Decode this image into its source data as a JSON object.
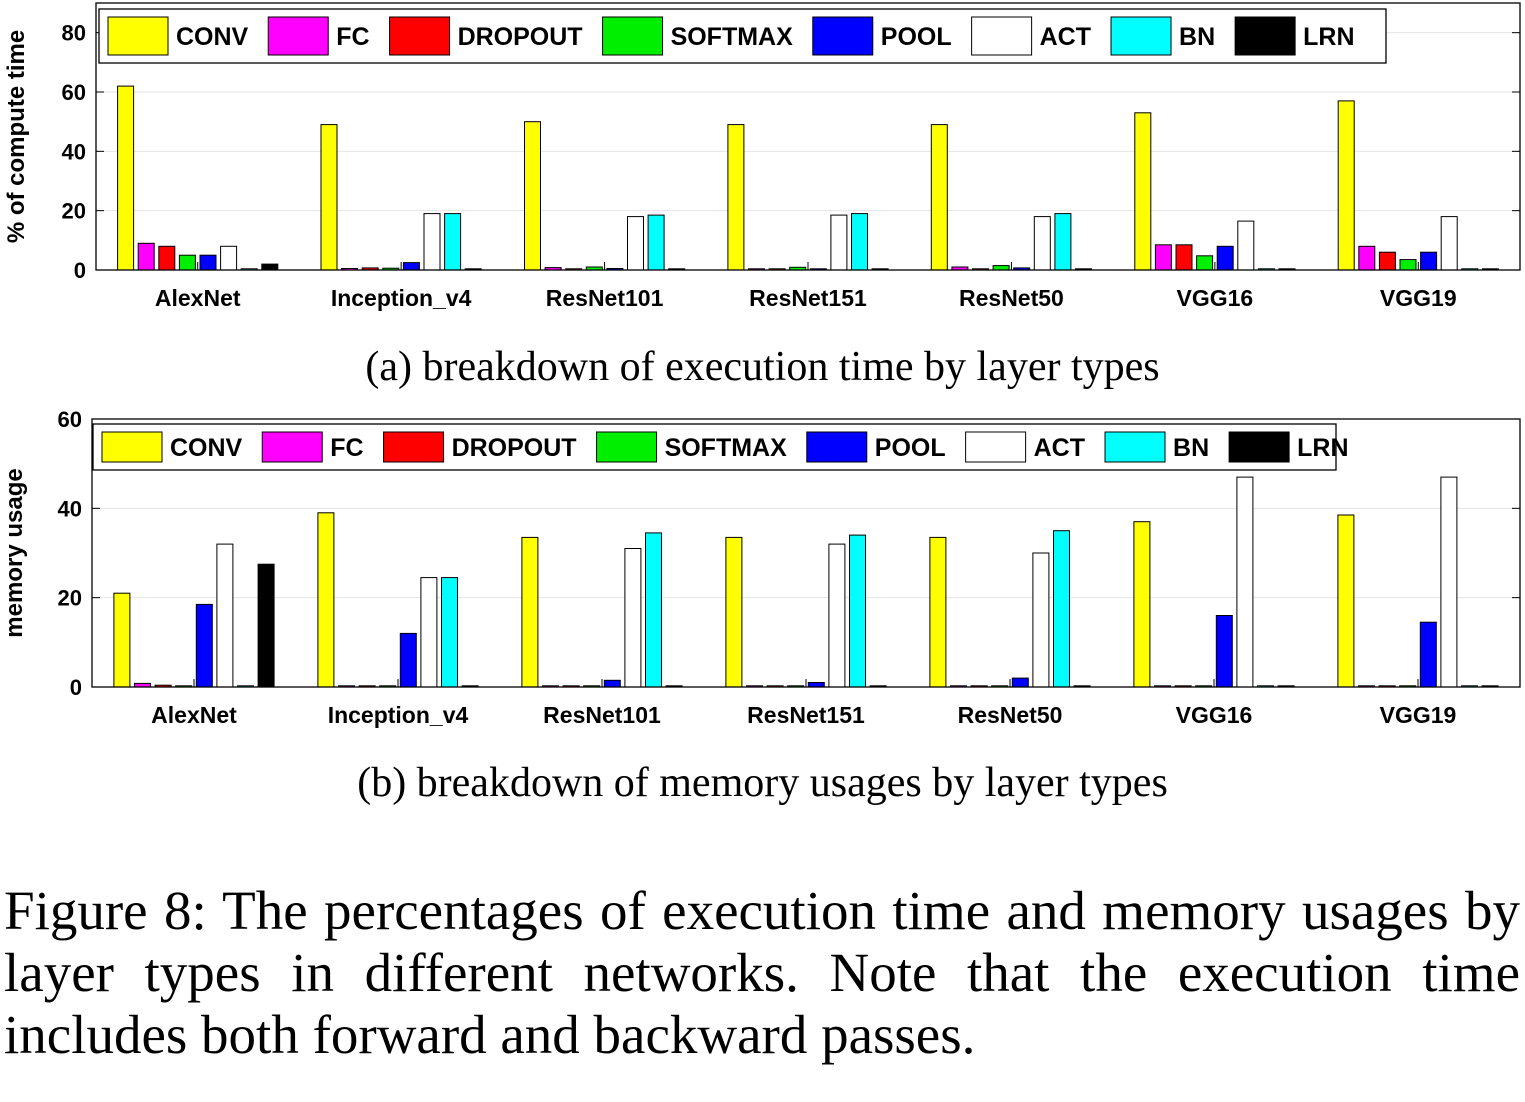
{
  "colors": {
    "CONV": "#ffff00",
    "FC": "#ff00ff",
    "DROPOUT": "#ff0000",
    "SOFTMAX": "#00ee00",
    "POOL": "#0000ff",
    "ACT": "#ffffff",
    "BN": "#00ffff",
    "LRN": "#000000"
  },
  "chart_data": [
    {
      "type": "bar",
      "ylabel": "% of compute time",
      "ylim": [
        0,
        90
      ],
      "yticks": [
        0,
        20,
        40,
        60,
        80
      ],
      "legend": "top-left",
      "categories": [
        "AlexNet",
        "Inception_v4",
        "ResNet101",
        "ResNet151",
        "ResNet50",
        "VGG16",
        "VGG19"
      ],
      "series": [
        {
          "name": "CONV",
          "values": [
            62,
            49,
            50,
            49,
            49,
            53,
            57
          ]
        },
        {
          "name": "FC",
          "values": [
            9,
            0.5,
            0.8,
            0.3,
            1,
            8.5,
            8
          ]
        },
        {
          "name": "DROPOUT",
          "values": [
            8,
            0.7,
            0,
            0,
            0,
            8.5,
            6
          ]
        },
        {
          "name": "SOFTMAX",
          "values": [
            5,
            0.6,
            1,
            0.9,
            1.5,
            4.8,
            3.5
          ]
        },
        {
          "name": "POOL",
          "values": [
            5,
            2.5,
            0.5,
            0.4,
            0.7,
            8,
            6
          ]
        },
        {
          "name": "ACT",
          "values": [
            8,
            19,
            18,
            18.5,
            18,
            16.5,
            18
          ]
        },
        {
          "name": "BN",
          "values": [
            0,
            19,
            18.5,
            19,
            19,
            0,
            0
          ]
        },
        {
          "name": "LRN",
          "values": [
            2,
            0,
            0,
            0,
            0,
            0,
            0
          ]
        }
      ],
      "subcaption": "(a) breakdown of execution time by layer types"
    },
    {
      "type": "bar",
      "ylabel": "memory usage",
      "ylim": [
        0,
        60
      ],
      "yticks": [
        0,
        20,
        40,
        60
      ],
      "legend": "top-left",
      "categories": [
        "AlexNet",
        "Inception_v4",
        "ResNet101",
        "ResNet151",
        "ResNet50",
        "VGG16",
        "VGG19"
      ],
      "series": [
        {
          "name": "CONV",
          "values": [
            21,
            39,
            33.5,
            33.5,
            33.5,
            37,
            38.5
          ]
        },
        {
          "name": "FC",
          "values": [
            0.8,
            0,
            0,
            0,
            0,
            0,
            0
          ]
        },
        {
          "name": "DROPOUT",
          "values": [
            0.4,
            0,
            0,
            0,
            0,
            0,
            0
          ]
        },
        {
          "name": "SOFTMAX",
          "values": [
            0,
            0,
            0,
            0,
            0,
            0,
            0
          ]
        },
        {
          "name": "POOL",
          "values": [
            18.5,
            12,
            1.5,
            1,
            2,
            16,
            14.5
          ]
        },
        {
          "name": "ACT",
          "values": [
            32,
            24.5,
            31,
            32,
            30,
            47,
            47
          ]
        },
        {
          "name": "BN",
          "values": [
            0,
            24.5,
            34.5,
            34,
            35,
            0,
            0
          ]
        },
        {
          "name": "LRN",
          "values": [
            27.5,
            0,
            0,
            0,
            0,
            0,
            0
          ]
        }
      ],
      "subcaption": "(b) breakdown of memory usages by layer types"
    }
  ],
  "caption": "Figure 8: The percentages of execution time and memory usages by layer types in different networks. Note that the execution time includes both forward and backward passes."
}
